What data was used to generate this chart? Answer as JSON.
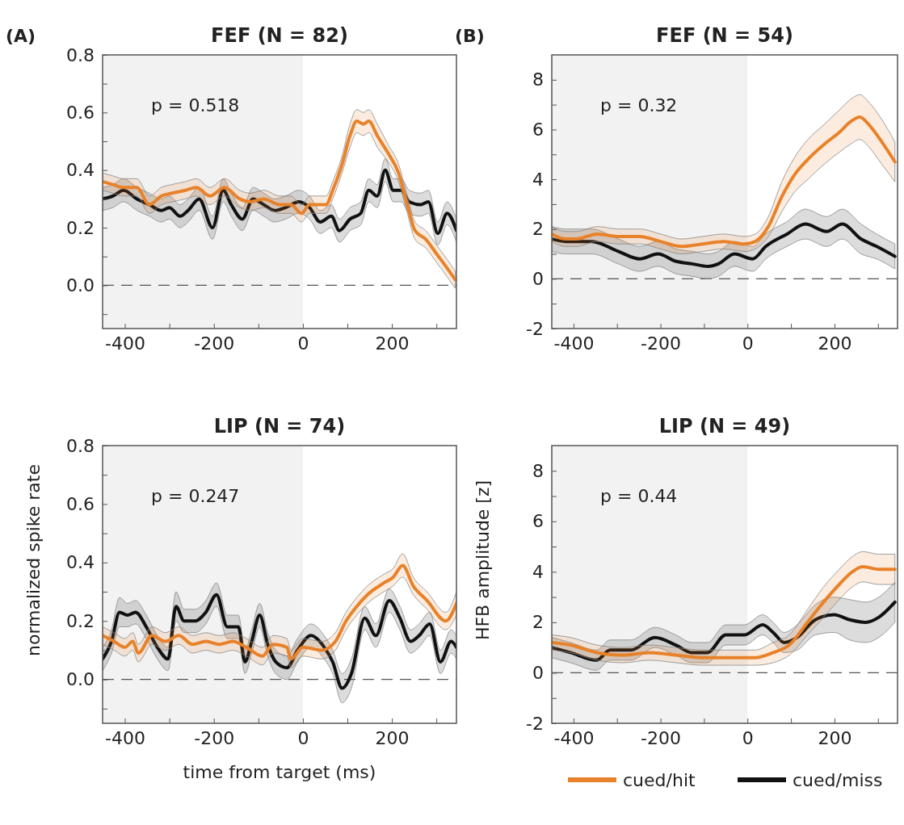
{
  "chart_data": [
    {
      "type": "line",
      "title": "FEF (N = 82)",
      "annotations": [
        "(A)",
        "p = 0.518"
      ],
      "xlim": [
        -450,
        345
      ],
      "ylim": [
        -0.15,
        0.8
      ],
      "xticks": [
        -400,
        {
          "value": -300,
          "label": null
        },
        -200,
        {
          "value": -100,
          "label": null
        },
        0,
        {
          "value": 100,
          "label": null
        },
        200,
        {
          "value": 300,
          "label": null
        }
      ],
      "yticks": [
        {
          "value": -0.1,
          "label": null
        },
        {
          "value": 0,
          "label": "0.0"
        },
        {
          "value": 0.1,
          "label": null
        },
        0.2,
        {
          "value": 0.3,
          "label": null
        },
        0.4,
        {
          "value": 0.5,
          "label": null
        },
        0.6,
        {
          "value": 0.7,
          "label": null
        },
        0.8
      ],
      "bands": [
        {
          "axis": "x",
          "from": -450,
          "to": 0,
          "color": "#f2f2f2"
        }
      ],
      "ref_lines": [
        {
          "axis": "y",
          "value": 0,
          "color": "#555555",
          "line_style": "dashed"
        }
      ],
      "legend": false,
      "line_style": "solid",
      "marker": "none",
      "series": [
        {
          "color": "#111111",
          "x": [
            -450,
            -427,
            -403,
            -373,
            -345,
            -318,
            -300,
            -276,
            -258,
            -233,
            -203,
            -179,
            -161,
            -136,
            -112,
            -88,
            -64,
            -39,
            -9,
            15,
            39,
            64,
            82,
            106,
            130,
            148,
            167,
            185,
            203,
            221,
            239,
            264,
            282,
            303,
            324,
            345
          ],
          "values": [
            0.3,
            0.31,
            0.33,
            0.3,
            0.28,
            0.26,
            0.27,
            0.24,
            0.26,
            0.3,
            0.2,
            0.33,
            0.28,
            0.23,
            0.3,
            0.28,
            0.26,
            0.27,
            0.29,
            0.27,
            0.22,
            0.24,
            0.19,
            0.23,
            0.25,
            0.33,
            0.31,
            0.4,
            0.33,
            0.33,
            0.29,
            0.28,
            0.29,
            0.18,
            0.25,
            0.19
          ],
          "lower": [
            0.26,
            0.27,
            0.29,
            0.26,
            0.24,
            0.22,
            0.23,
            0.2,
            0.22,
            0.26,
            0.16,
            0.29,
            0.24,
            0.19,
            0.26,
            0.24,
            0.22,
            0.23,
            0.25,
            0.23,
            0.18,
            0.2,
            0.15,
            0.19,
            0.21,
            0.29,
            0.27,
            0.36,
            0.29,
            0.29,
            0.25,
            0.24,
            0.25,
            0.14,
            0.21,
            0.15
          ],
          "upper": [
            0.34,
            0.35,
            0.37,
            0.34,
            0.32,
            0.3,
            0.31,
            0.28,
            0.3,
            0.34,
            0.24,
            0.37,
            0.32,
            0.27,
            0.34,
            0.32,
            0.3,
            0.31,
            0.33,
            0.31,
            0.26,
            0.28,
            0.23,
            0.27,
            0.29,
            0.37,
            0.35,
            0.44,
            0.37,
            0.37,
            0.33,
            0.32,
            0.33,
            0.22,
            0.29,
            0.23
          ]
        },
        {
          "color": "#e8822a",
          "x": [
            -450,
            -427,
            -403,
            -373,
            -345,
            -318,
            -294,
            -264,
            -239,
            -209,
            -176,
            -142,
            -118,
            -88,
            -52,
            -27,
            -3,
            15,
            52,
            67,
            88,
            106,
            121,
            136,
            148,
            167,
            191,
            215,
            233,
            252,
            276,
            300,
            324,
            342
          ],
          "values": [
            0.36,
            0.35,
            0.34,
            0.34,
            0.28,
            0.31,
            0.32,
            0.33,
            0.34,
            0.31,
            0.34,
            0.3,
            0.29,
            0.3,
            0.28,
            0.28,
            0.25,
            0.28,
            0.28,
            0.33,
            0.42,
            0.52,
            0.57,
            0.56,
            0.57,
            0.52,
            0.46,
            0.39,
            0.29,
            0.19,
            0.16,
            0.11,
            0.06,
            0.02
          ],
          "lower": [
            0.33,
            0.32,
            0.31,
            0.31,
            0.25,
            0.28,
            0.29,
            0.3,
            0.31,
            0.28,
            0.31,
            0.27,
            0.26,
            0.27,
            0.25,
            0.25,
            0.22,
            0.25,
            0.25,
            0.3,
            0.39,
            0.48,
            0.53,
            0.52,
            0.53,
            0.48,
            0.43,
            0.36,
            0.26,
            0.16,
            0.13,
            0.08,
            0.03,
            -0.01
          ],
          "upper": [
            0.39,
            0.38,
            0.37,
            0.37,
            0.31,
            0.34,
            0.35,
            0.36,
            0.37,
            0.34,
            0.37,
            0.33,
            0.32,
            0.33,
            0.31,
            0.31,
            0.28,
            0.31,
            0.31,
            0.36,
            0.45,
            0.56,
            0.61,
            0.6,
            0.61,
            0.56,
            0.49,
            0.42,
            0.32,
            0.22,
            0.19,
            0.14,
            0.09,
            0.05
          ]
        }
      ]
    },
    {
      "type": "line",
      "title": "FEF (N = 54)",
      "annotations": [
        "(B)",
        "p = 0.32"
      ],
      "xlim": [
        -450,
        345
      ],
      "ylim": [
        -2,
        9
      ],
      "xticks": [
        -400,
        {
          "value": -300,
          "label": null
        },
        -200,
        {
          "value": -100,
          "label": null
        },
        0,
        {
          "value": 100,
          "label": null
        },
        200,
        {
          "value": 300,
          "label": null
        }
      ],
      "yticks": [
        -2,
        {
          "value": -1,
          "label": null
        },
        0,
        {
          "value": 1,
          "label": null
        },
        2,
        {
          "value": 3,
          "label": null
        },
        4,
        {
          "value": 5,
          "label": null
        },
        6,
        {
          "value": 7,
          "label": null
        },
        8
      ],
      "bands": [
        {
          "axis": "x",
          "from": -450,
          "to": 0,
          "color": "#f2f2f2"
        }
      ],
      "ref_lines": [
        {
          "axis": "y",
          "value": 0,
          "color": "#555555",
          "line_style": "dashed"
        }
      ],
      "legend": false,
      "line_style": "solid",
      "marker": "none",
      "series": [
        {
          "color": "#111111",
          "x": [
            -450,
            -418,
            -358,
            -297,
            -248,
            -206,
            -164,
            -127,
            -91,
            -67,
            -30,
            12,
            42,
            91,
            133,
            182,
            218,
            261,
            297,
            339
          ],
          "values": [
            1.6,
            1.5,
            1.5,
            1.1,
            0.8,
            1.0,
            0.7,
            0.6,
            0.5,
            0.6,
            1.0,
            0.8,
            1.3,
            1.8,
            2.2,
            1.9,
            2.2,
            1.6,
            1.3,
            0.9
          ],
          "lower": [
            1.1,
            1.0,
            1.0,
            0.6,
            0.3,
            0.5,
            0.2,
            0.1,
            0.0,
            0.1,
            0.5,
            0.3,
            0.8,
            1.3,
            1.6,
            1.3,
            1.6,
            1.0,
            0.8,
            0.4
          ],
          "upper": [
            2.1,
            2.0,
            2.0,
            1.6,
            1.3,
            1.5,
            1.2,
            1.1,
            1.0,
            1.1,
            1.5,
            1.3,
            1.8,
            2.3,
            2.8,
            2.5,
            2.8,
            2.2,
            1.8,
            1.4
          ]
        },
        {
          "color": "#e8822a",
          "x": [
            -450,
            -418,
            -394,
            -345,
            -297,
            -248,
            -200,
            -152,
            -103,
            -55,
            -6,
            18,
            48,
            79,
            109,
            139,
            176,
            212,
            236,
            258,
            279,
            309,
            339
          ],
          "values": [
            1.8,
            1.6,
            1.6,
            1.8,
            1.7,
            1.7,
            1.5,
            1.3,
            1.4,
            1.5,
            1.4,
            1.5,
            2.1,
            3.3,
            4.2,
            4.8,
            5.4,
            5.9,
            6.3,
            6.5,
            6.2,
            5.5,
            4.7
          ],
          "lower": [
            1.5,
            1.3,
            1.3,
            1.5,
            1.4,
            1.4,
            1.2,
            1.0,
            1.1,
            1.2,
            1.1,
            1.2,
            1.7,
            2.7,
            3.5,
            4.0,
            4.6,
            5.1,
            5.4,
            5.6,
            5.3,
            4.6,
            3.9
          ],
          "upper": [
            2.1,
            1.9,
            1.9,
            2.1,
            2.0,
            2.0,
            1.8,
            1.6,
            1.7,
            1.8,
            1.7,
            1.8,
            2.5,
            3.9,
            4.9,
            5.6,
            6.2,
            6.8,
            7.2,
            7.4,
            7.1,
            6.4,
            5.5
          ]
        }
      ]
    },
    {
      "type": "line",
      "title": "LIP (N = 74)",
      "xlabel": "time from target (ms)",
      "ylabel": "normalized spike rate",
      "annotations": [
        "p = 0.247"
      ],
      "xlim": [
        -450,
        345
      ],
      "ylim": [
        -0.15,
        0.8
      ],
      "xticks": [
        -400,
        {
          "value": -300,
          "label": null
        },
        -200,
        {
          "value": -100,
          "label": null
        },
        0,
        {
          "value": 100,
          "label": null
        },
        200,
        {
          "value": 300,
          "label": null
        }
      ],
      "yticks": [
        {
          "value": -0.1,
          "label": null
        },
        {
          "value": 0,
          "label": "0.0"
        },
        {
          "value": 0.1,
          "label": null
        },
        0.2,
        {
          "value": 0.3,
          "label": null
        },
        0.4,
        {
          "value": 0.5,
          "label": null
        },
        0.6,
        {
          "value": 0.7,
          "label": null
        },
        0.8
      ],
      "bands": [
        {
          "axis": "x",
          "from": -450,
          "to": 0,
          "color": "#f2f2f2"
        }
      ],
      "ref_lines": [
        {
          "axis": "y",
          "value": 0,
          "color": "#555555",
          "line_style": "dashed"
        }
      ],
      "legend": false,
      "line_style": "solid",
      "marker": "none",
      "series": [
        {
          "color": "#111111",
          "x": [
            -450,
            -430,
            -412,
            -394,
            -376,
            -352,
            -327,
            -303,
            -285,
            -267,
            -242,
            -218,
            -194,
            -170,
            -145,
            -130,
            -115,
            -97,
            -79,
            -61,
            -36,
            -12,
            18,
            48,
            67,
            88,
            109,
            139,
            164,
            194,
            218,
            242,
            261,
            285,
            309,
            333,
            345
          ],
          "values": [
            0.07,
            0.13,
            0.23,
            0.22,
            0.23,
            0.18,
            0.11,
            0.07,
            0.25,
            0.2,
            0.2,
            0.23,
            0.29,
            0.18,
            0.18,
            0.06,
            0.13,
            0.22,
            0.12,
            0.06,
            0.04,
            0.1,
            0.15,
            0.11,
            0.06,
            -0.03,
            0.02,
            0.21,
            0.15,
            0.27,
            0.21,
            0.13,
            0.15,
            0.19,
            0.06,
            0.13,
            0.11
          ],
          "lower": [
            0.03,
            0.09,
            0.18,
            0.18,
            0.19,
            0.14,
            0.07,
            0.03,
            0.2,
            0.16,
            0.16,
            0.19,
            0.25,
            0.14,
            0.14,
            0.02,
            0.09,
            0.18,
            0.08,
            0.02,
            0.0,
            0.06,
            0.11,
            0.07,
            0.02,
            -0.08,
            -0.03,
            0.17,
            0.11,
            0.23,
            0.17,
            0.09,
            0.11,
            0.15,
            0.02,
            0.09,
            0.07
          ],
          "upper": [
            0.11,
            0.17,
            0.28,
            0.26,
            0.27,
            0.22,
            0.15,
            0.11,
            0.3,
            0.24,
            0.24,
            0.27,
            0.33,
            0.22,
            0.22,
            0.1,
            0.17,
            0.26,
            0.16,
            0.1,
            0.08,
            0.14,
            0.19,
            0.15,
            0.1,
            0.02,
            0.07,
            0.25,
            0.19,
            0.31,
            0.25,
            0.17,
            0.19,
            0.23,
            0.1,
            0.17,
            0.15
          ]
        },
        {
          "color": "#e8822a",
          "x": [
            -450,
            -424,
            -400,
            -382,
            -370,
            -339,
            -309,
            -279,
            -248,
            -218,
            -188,
            -158,
            -127,
            -91,
            -67,
            -36,
            -27,
            0,
            42,
            73,
            97,
            121,
            145,
            182,
            203,
            224,
            248,
            279,
            321,
            345
          ],
          "values": [
            0.15,
            0.13,
            0.11,
            0.13,
            0.09,
            0.15,
            0.13,
            0.15,
            0.12,
            0.13,
            0.12,
            0.13,
            0.11,
            0.08,
            0.12,
            0.11,
            0.07,
            0.11,
            0.1,
            0.13,
            0.2,
            0.25,
            0.29,
            0.33,
            0.35,
            0.39,
            0.32,
            0.27,
            0.2,
            0.26
          ],
          "lower": [
            0.12,
            0.1,
            0.08,
            0.1,
            0.06,
            0.12,
            0.1,
            0.12,
            0.09,
            0.1,
            0.09,
            0.1,
            0.08,
            0.05,
            0.09,
            0.08,
            0.04,
            0.08,
            0.07,
            0.1,
            0.17,
            0.22,
            0.26,
            0.3,
            0.32,
            0.35,
            0.29,
            0.24,
            0.17,
            0.22
          ],
          "upper": [
            0.18,
            0.16,
            0.14,
            0.16,
            0.12,
            0.18,
            0.16,
            0.18,
            0.15,
            0.16,
            0.15,
            0.16,
            0.14,
            0.11,
            0.15,
            0.14,
            0.1,
            0.14,
            0.13,
            0.16,
            0.23,
            0.28,
            0.32,
            0.36,
            0.38,
            0.43,
            0.35,
            0.3,
            0.23,
            0.3
          ]
        }
      ]
    },
    {
      "type": "line",
      "title": "LIP (N = 49)",
      "ylabel": "HFB amplitude [z]",
      "annotations": [
        "p = 0.44"
      ],
      "xlim": [
        -450,
        345
      ],
      "ylim": [
        -2,
        9
      ],
      "xticks": [
        -400,
        {
          "value": -300,
          "label": null
        },
        -200,
        {
          "value": -100,
          "label": null
        },
        0,
        {
          "value": 100,
          "label": null
        },
        200,
        {
          "value": 300,
          "label": null
        }
      ],
      "yticks": [
        -2,
        {
          "value": -1,
          "label": null
        },
        0,
        {
          "value": 1,
          "label": null
        },
        2,
        {
          "value": 3,
          "label": null
        },
        4,
        {
          "value": 5,
          "label": null
        },
        6,
        {
          "value": 7,
          "label": null
        },
        8
      ],
      "bands": [
        {
          "axis": "x",
          "from": -450,
          "to": 0,
          "color": "#f2f2f2"
        }
      ],
      "ref_lines": [
        {
          "axis": "y",
          "value": 0,
          "color": "#555555",
          "line_style": "dashed"
        }
      ],
      "legend": "bottom",
      "line_style": "solid",
      "marker": "none",
      "series": [
        {
          "name": "cued/miss",
          "color": "#111111",
          "x": [
            -450,
            -407,
            -347,
            -316,
            -268,
            -213,
            -165,
            -128,
            -92,
            -50,
            -7,
            35,
            59,
            84,
            114,
            156,
            199,
            235,
            272,
            302,
            339
          ],
          "values": [
            1.0,
            0.8,
            0.5,
            0.9,
            0.9,
            1.4,
            1.1,
            0.8,
            0.8,
            1.5,
            1.5,
            1.9,
            1.6,
            1.2,
            1.4,
            2.1,
            2.3,
            2.1,
            2.0,
            2.2,
            2.8
          ],
          "lower": [
            0.6,
            0.4,
            0.1,
            0.5,
            0.5,
            1.0,
            0.7,
            0.4,
            0.4,
            1.1,
            1.1,
            1.5,
            1.2,
            0.8,
            0.9,
            1.5,
            1.6,
            1.3,
            1.2,
            1.4,
            2.0
          ],
          "upper": [
            1.4,
            1.2,
            0.9,
            1.3,
            1.3,
            1.8,
            1.5,
            1.2,
            1.2,
            1.9,
            1.9,
            2.3,
            2.0,
            1.6,
            1.9,
            2.7,
            3.0,
            2.9,
            2.8,
            3.0,
            3.6
          ]
        },
        {
          "name": "cued/hit",
          "color": "#e8822a",
          "x": [
            -450,
            -407,
            -347,
            -286,
            -225,
            -165,
            -104,
            -44,
            17,
            59,
            96,
            138,
            175,
            211,
            241,
            265,
            302,
            339
          ],
          "values": [
            1.2,
            1.1,
            0.8,
            0.7,
            0.8,
            0.7,
            0.6,
            0.6,
            0.6,
            0.8,
            1.1,
            2.0,
            2.8,
            3.5,
            4.0,
            4.2,
            4.1,
            4.1
          ],
          "lower": [
            0.9,
            0.8,
            0.5,
            0.4,
            0.5,
            0.4,
            0.3,
            0.3,
            0.3,
            0.4,
            0.7,
            1.5,
            2.2,
            2.9,
            3.4,
            3.6,
            3.5,
            3.5
          ],
          "upper": [
            1.5,
            1.4,
            1.1,
            1.0,
            1.1,
            1.0,
            0.9,
            0.9,
            0.9,
            1.2,
            1.5,
            2.5,
            3.4,
            4.1,
            4.6,
            4.8,
            4.7,
            4.7
          ]
        }
      ]
    }
  ]
}
